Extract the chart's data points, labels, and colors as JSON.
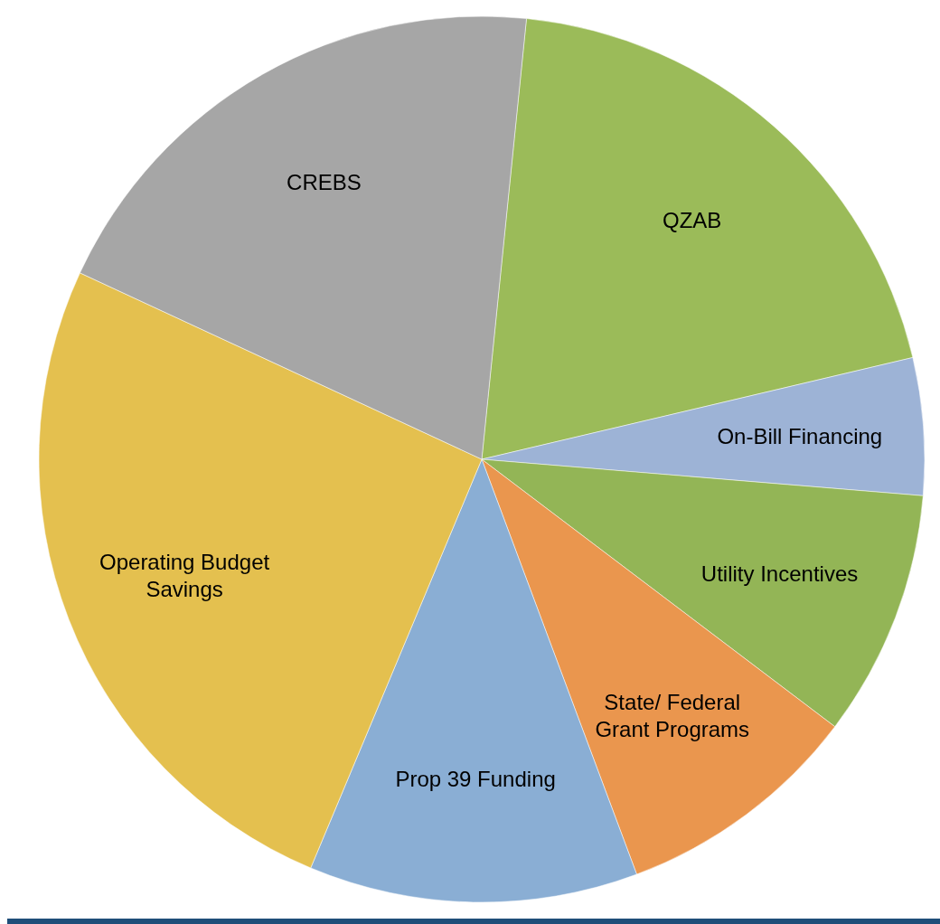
{
  "chart_data": {
    "type": "pie",
    "categories": [
      "QZAB",
      "On-Bill Financing",
      "Utility Incentives",
      "State/ Federal Grant Programs",
      "Prop 39 Funding",
      "Operating Budget Savings",
      "CREBS"
    ],
    "values": [
      19.7,
      5.0,
      9.0,
      9.0,
      12.0,
      25.6,
      19.7
    ],
    "colors": [
      "#9bbb59",
      "#9db3d6",
      "#93b556",
      "#ea964e",
      "#8aaed4",
      "#e4c04f",
      "#a6a6a6"
    ]
  }
}
